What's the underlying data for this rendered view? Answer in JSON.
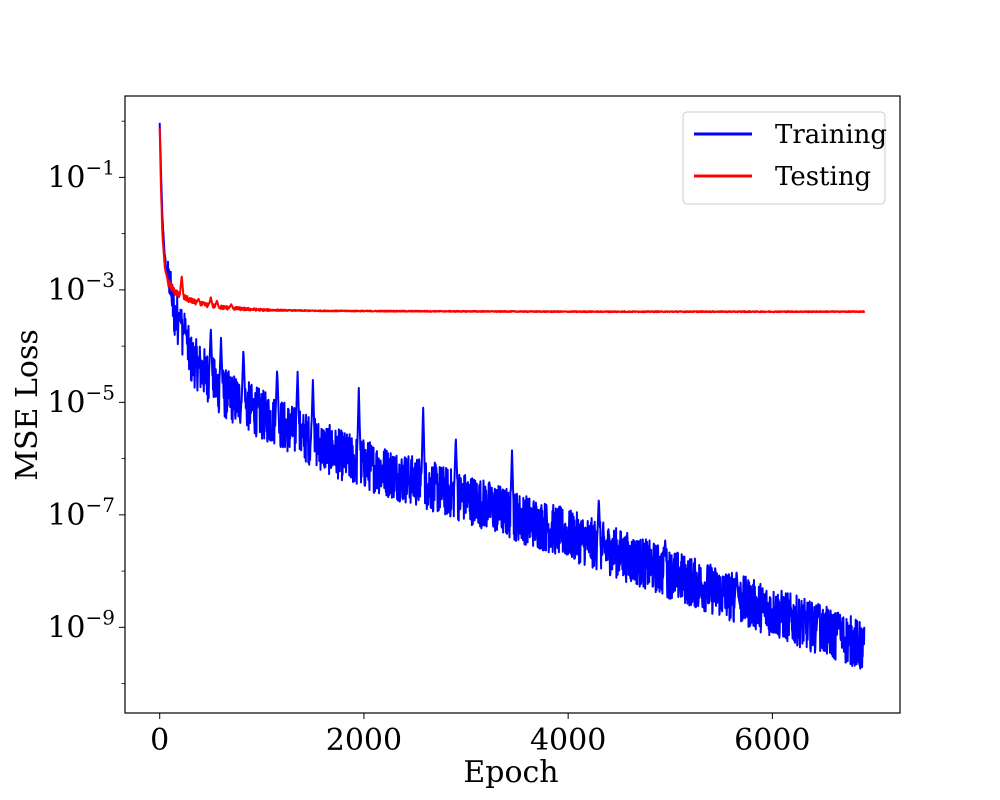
{
  "chart_data": {
    "type": "line",
    "xlabel": "Epoch",
    "ylabel": "MSE Loss",
    "yscale": "log",
    "xlim": [
      -340,
      7250
    ],
    "ylim": [
      3e-11,
      2.8
    ],
    "x_ticks": [
      {
        "value": 0,
        "label": "0"
      },
      {
        "value": 2000,
        "label": "2000"
      },
      {
        "value": 4000,
        "label": "4000"
      },
      {
        "value": 6000,
        "label": "6000"
      }
    ],
    "y_ticks": [
      {
        "value": 0.1,
        "base": "10",
        "exp": "−1"
      },
      {
        "value": 0.001,
        "base": "10",
        "exp": "−3"
      },
      {
        "value": 1e-05,
        "base": "10",
        "exp": "−5"
      },
      {
        "value": 1e-07,
        "base": "10",
        "exp": "−7"
      },
      {
        "value": 1e-09,
        "base": "10",
        "exp": "−9"
      }
    ],
    "grid": false,
    "legend_position": "top-right",
    "series": [
      {
        "name": "Training",
        "color": "#0000ff",
        "points": [
          [
            0,
            0.9
          ],
          [
            10,
            0.2
          ],
          [
            25,
            0.02
          ],
          [
            50,
            0.004
          ],
          [
            80,
            0.0015
          ],
          [
            120,
            0.0006
          ],
          [
            150,
            0.00035
          ],
          [
            200,
            0.00025
          ],
          [
            260,
            0.00012
          ],
          [
            300,
            6e-05
          ],
          [
            400,
            4e-05
          ],
          [
            500,
            2.5e-05
          ],
          [
            600,
            1.6e-05
          ],
          [
            700,
            1.2e-05
          ],
          [
            800,
            1e-05
          ],
          [
            1000,
            6e-06
          ],
          [
            1200,
            4e-06
          ],
          [
            1400,
            2.5e-06
          ],
          [
            1600,
            1.6e-06
          ],
          [
            1800,
            1.1e-06
          ],
          [
            2000,
            8e-07
          ],
          [
            2200,
            6e-07
          ],
          [
            2400,
            4.5e-07
          ],
          [
            2600,
            3.5e-07
          ],
          [
            2800,
            2.6e-07
          ],
          [
            3000,
            2e-07
          ],
          [
            3200,
            1.5e-07
          ],
          [
            3400,
            1.1e-07
          ],
          [
            3600,
            8e-08
          ],
          [
            3800,
            6e-08
          ],
          [
            4000,
            4.5e-08
          ],
          [
            4200,
            3.3e-08
          ],
          [
            4400,
            2.4e-08
          ],
          [
            4600,
            1.7e-08
          ],
          [
            4800,
            1.25e-08
          ],
          [
            5000,
            9e-09
          ],
          [
            5200,
            6.5e-09
          ],
          [
            5400,
            4.8e-09
          ],
          [
            5600,
            3.5e-09
          ],
          [
            5800,
            2.6e-09
          ],
          [
            6000,
            1.9e-09
          ],
          [
            6200,
            1.4e-09
          ],
          [
            6400,
            1e-09
          ],
          [
            6600,
            7.5e-10
          ],
          [
            6800,
            5.5e-10
          ],
          [
            6900,
            4e-10
          ]
        ],
        "spikes": [
          [
            100,
            0.00085
          ],
          [
            200,
            0.0003
          ],
          [
            250,
            0.0002
          ],
          [
            500,
            0.00022
          ],
          [
            600,
            0.00014
          ],
          [
            820,
            9e-05
          ],
          [
            1150,
            4e-05
          ],
          [
            1350,
            3.5e-05
          ],
          [
            1500,
            2.5e-05
          ],
          [
            1950,
            1.8e-05
          ],
          [
            2580,
            8e-06
          ],
          [
            2900,
            2.5e-06
          ],
          [
            3450,
            1.4e-06
          ],
          [
            4300,
            2e-07
          ],
          [
            4950,
            3.5e-08
          ],
          [
            5650,
            1e-08
          ],
          [
            6450,
            2.6e-09
          ],
          [
            6650,
            1.4e-09
          ]
        ]
      },
      {
        "name": "Testing",
        "color": "#ff0000",
        "points": [
          [
            0,
            0.75
          ],
          [
            10,
            0.1
          ],
          [
            25,
            0.01
          ],
          [
            50,
            0.0025
          ],
          [
            80,
            0.0014
          ],
          [
            120,
            0.0011
          ],
          [
            150,
            0.0009
          ],
          [
            200,
            0.0008
          ],
          [
            300,
            0.00065
          ],
          [
            400,
            0.00056
          ],
          [
            600,
            0.00049
          ],
          [
            800,
            0.00046
          ],
          [
            1000,
            0.00044
          ],
          [
            1500,
            0.000425
          ],
          [
            2000,
            0.00042
          ],
          [
            3000,
            0.000415
          ],
          [
            4000,
            0.00041
          ],
          [
            5000,
            0.00041
          ],
          [
            6000,
            0.00041
          ],
          [
            6900,
            0.00041
          ]
        ],
        "spikes": [
          [
            215,
            0.0018
          ],
          [
            380,
            0.0007
          ],
          [
            500,
            0.00075
          ],
          [
            560,
            0.00065
          ],
          [
            700,
            0.00056
          ]
        ]
      }
    ]
  }
}
